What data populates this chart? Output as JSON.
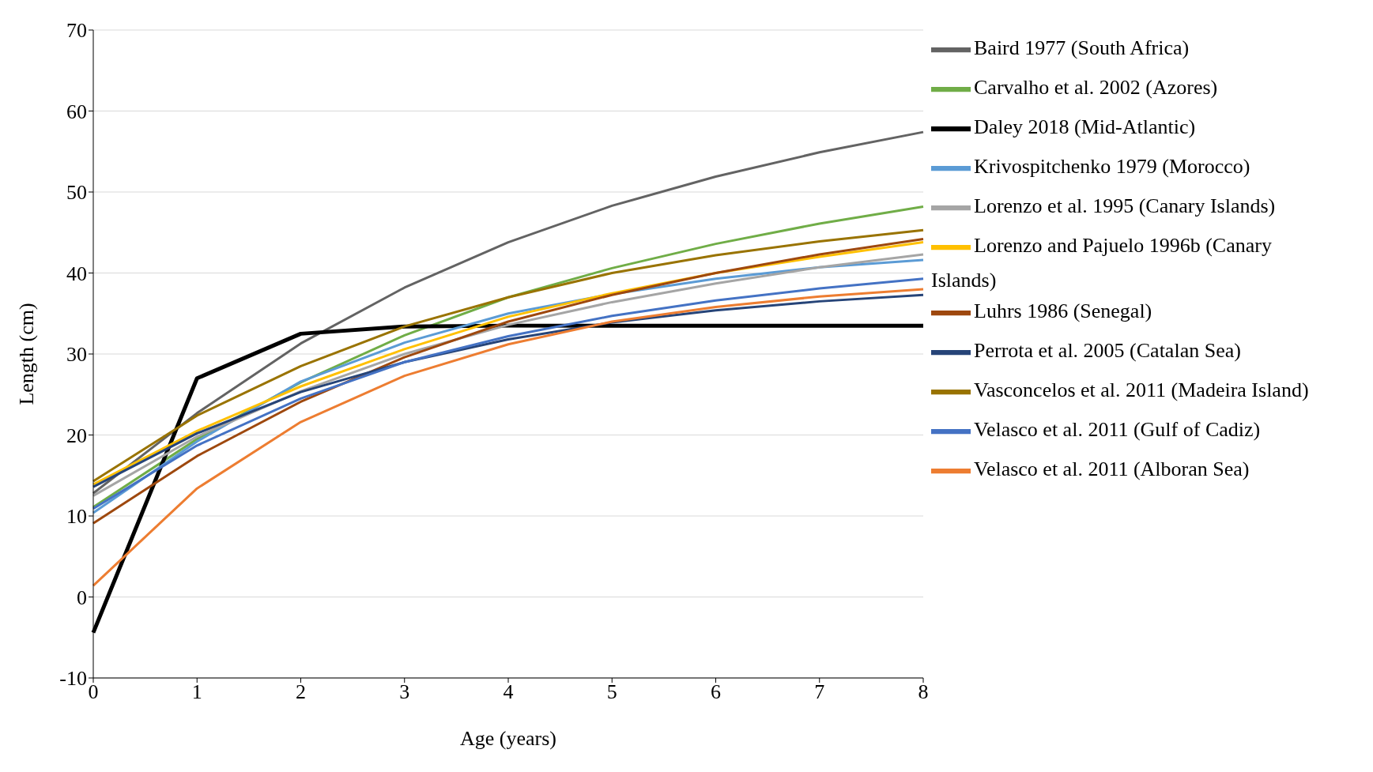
{
  "chart_data": {
    "type": "line",
    "xlabel": "Age (years)",
    "ylabel": "Length (cm)",
    "categories": [
      "0",
      "1",
      "2",
      "3",
      "4",
      "5",
      "6",
      "7",
      "8"
    ],
    "ylim": [
      -10,
      70
    ],
    "yticks": [
      -10,
      0,
      10,
      20,
      30,
      40,
      50,
      60,
      70
    ],
    "grid": "y",
    "legend": "right",
    "marker": "none",
    "line_style": "solid",
    "series": [
      {
        "name": "Baird 1977 (South Africa)",
        "color": "#636363",
        "values": [
          12.8,
          22.7,
          31.3,
          38.2,
          43.8,
          48.3,
          51.9,
          54.9,
          57.4
        ]
      },
      {
        "name": "Carvalho et al. 2002 (Azores)",
        "color": "#70ad47",
        "values": [
          11.1,
          19.5,
          26.5,
          32.3,
          37.0,
          40.6,
          43.6,
          46.1,
          48.2
        ]
      },
      {
        "name": "Daley 2018 (Mid-Atlantic)",
        "color": "#000000",
        "values": [
          -4.4,
          27.0,
          32.5,
          33.4,
          33.5,
          33.5,
          33.5,
          33.5,
          33.5
        ]
      },
      {
        "name": "Krivospitchenko 1979 (Morocco)",
        "color": "#5b9bd5",
        "values": [
          10.4,
          19.2,
          26.6,
          31.4,
          35.0,
          37.4,
          39.3,
          40.7,
          41.6
        ]
      },
      {
        "name": "Lorenzo et al. 1995 (Canary Islands)",
        "color": "#a5a5a5",
        "values": [
          12.5,
          19.8,
          25.4,
          30.0,
          33.6,
          36.4,
          38.7,
          40.7,
          42.3
        ]
      },
      {
        "name": "Lorenzo and Pajuelo 1996b (Canary Islands)",
        "color": "#ffc000",
        "values": [
          13.9,
          20.5,
          26.0,
          30.6,
          34.6,
          37.5,
          40.0,
          42.0,
          43.8
        ]
      },
      {
        "name": "Luhrs 1986 (Senegal)",
        "color": "#9e480e",
        "values": [
          9.1,
          17.4,
          24.1,
          29.6,
          34.0,
          37.3,
          40.0,
          42.3,
          44.2
        ]
      },
      {
        "name": "Perrota et al. 2005 (Catalan Sea)",
        "color": "#264478",
        "values": [
          13.6,
          20.2,
          25.3,
          29.0,
          31.8,
          33.9,
          35.4,
          36.5,
          37.3
        ]
      },
      {
        "name": "Vasconcelos et al. 2011 (Madeira Island)",
        "color": "#997300",
        "values": [
          14.3,
          22.4,
          28.5,
          33.4,
          37.0,
          40.0,
          42.2,
          43.9,
          45.3
        ]
      },
      {
        "name": "Velasco et al. 2011 (Gulf of Cadiz)",
        "color": "#4472c4",
        "values": [
          10.9,
          18.7,
          24.5,
          29.0,
          32.2,
          34.7,
          36.6,
          38.1,
          39.3
        ]
      },
      {
        "name": "Velasco et al. 2011 (Alboran Sea)",
        "color": "#ed7d31",
        "values": [
          1.4,
          13.4,
          21.6,
          27.3,
          31.2,
          34.0,
          35.8,
          37.1,
          38.0
        ]
      }
    ]
  }
}
